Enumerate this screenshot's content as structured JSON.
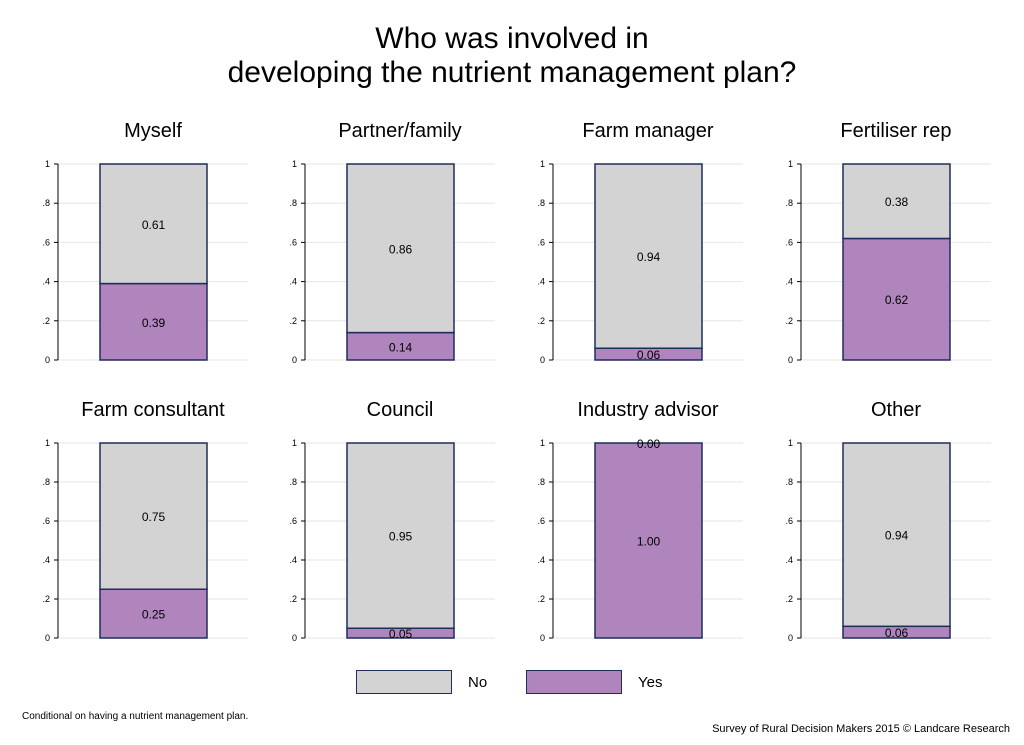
{
  "title_lines": [
    "Who was involved in",
    "developing the nutrient management plan?"
  ],
  "colors": {
    "no": "#d3d3d3",
    "yes": "#b085bd",
    "outline": "#1f2d5a",
    "grid": "#e6e6e6"
  },
  "chart_data": {
    "type": "bar",
    "stacked": true,
    "y_ticks": [
      "0",
      ".2",
      ".4",
      ".6",
      ".8",
      "1"
    ],
    "ylim": [
      0,
      1
    ],
    "legend_placement": "bottom",
    "series_order": [
      "Yes",
      "No"
    ],
    "panels": [
      {
        "title": "Myself",
        "yes": 0.39,
        "no": 0.61,
        "yes_label": "0.39",
        "no_label": "0.61"
      },
      {
        "title": "Partner/family",
        "yes": 0.14,
        "no": 0.86,
        "yes_label": "0.14",
        "no_label": "0.86"
      },
      {
        "title": "Farm manager",
        "yes": 0.06,
        "no": 0.94,
        "yes_label": "0.06",
        "no_label": "0.94"
      },
      {
        "title": "Fertiliser rep",
        "yes": 0.62,
        "no": 0.38,
        "yes_label": "0.62",
        "no_label": "0.38"
      },
      {
        "title": "Farm consultant",
        "yes": 0.25,
        "no": 0.75,
        "yes_label": "0.25",
        "no_label": "0.75"
      },
      {
        "title": "Council",
        "yes": 0.05,
        "no": 0.95,
        "yes_label": "0.05",
        "no_label": "0.95"
      },
      {
        "title": "Industry advisor",
        "yes": 1.0,
        "no": 0.0,
        "yes_label": "1.00",
        "no_label": "0.00"
      },
      {
        "title": "Other",
        "yes": 0.06,
        "no": 0.94,
        "yes_label": "0.06",
        "no_label": "0.94"
      }
    ]
  },
  "legend": {
    "no_label": "No",
    "yes_label": "Yes"
  },
  "footnote": "Conditional on having a nutrient management plan.",
  "source": "Survey of Rural Decision Makers 2015 © Landcare Research"
}
